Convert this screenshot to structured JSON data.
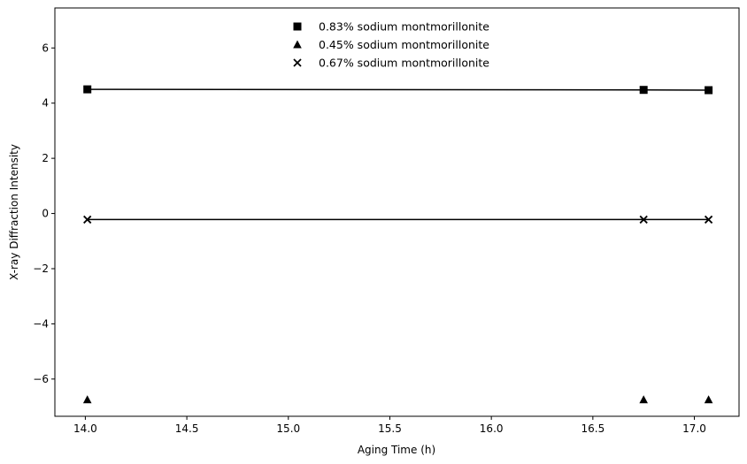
{
  "chart_data": {
    "type": "scatter",
    "xlabel": "Aging Time (h)",
    "ylabel": "X-ray Diffraction Intensity",
    "xlim": [
      13.85,
      17.22
    ],
    "ylim": [
      -7.35,
      7.45
    ],
    "xticks": [
      14.0,
      14.5,
      15.0,
      15.5,
      16.0,
      16.5,
      17.0
    ],
    "xtick_labels": [
      "14.0",
      "14.5",
      "15.0",
      "15.5",
      "16.0",
      "16.5",
      "17.0"
    ],
    "yticks": [
      -6,
      -4,
      -2,
      0,
      2,
      4,
      6
    ],
    "ytick_labels": [
      "−6",
      "−4",
      "−2",
      "0",
      "2",
      "4",
      "6"
    ],
    "grid": false,
    "legend_position": "top-center",
    "series": [
      {
        "name": "0.83% sodium montmorillonite",
        "marker": "square",
        "color": "#000000",
        "line": true,
        "x": [
          14.01,
          16.75,
          17.07
        ],
        "y": [
          4.5,
          4.48,
          4.47
        ]
      },
      {
        "name": "0.45% sodium montmorillonite",
        "marker": "triangle",
        "color": "#000000",
        "line": false,
        "x": [
          14.01,
          16.75,
          17.07
        ],
        "y": [
          -6.75,
          -6.75,
          -6.75
        ]
      },
      {
        "name": "0.67% sodium montmorillonite",
        "marker": "x",
        "color": "#000000",
        "line": true,
        "x": [
          14.01,
          16.75,
          17.07
        ],
        "y": [
          -0.22,
          -0.22,
          -0.22
        ]
      }
    ]
  }
}
